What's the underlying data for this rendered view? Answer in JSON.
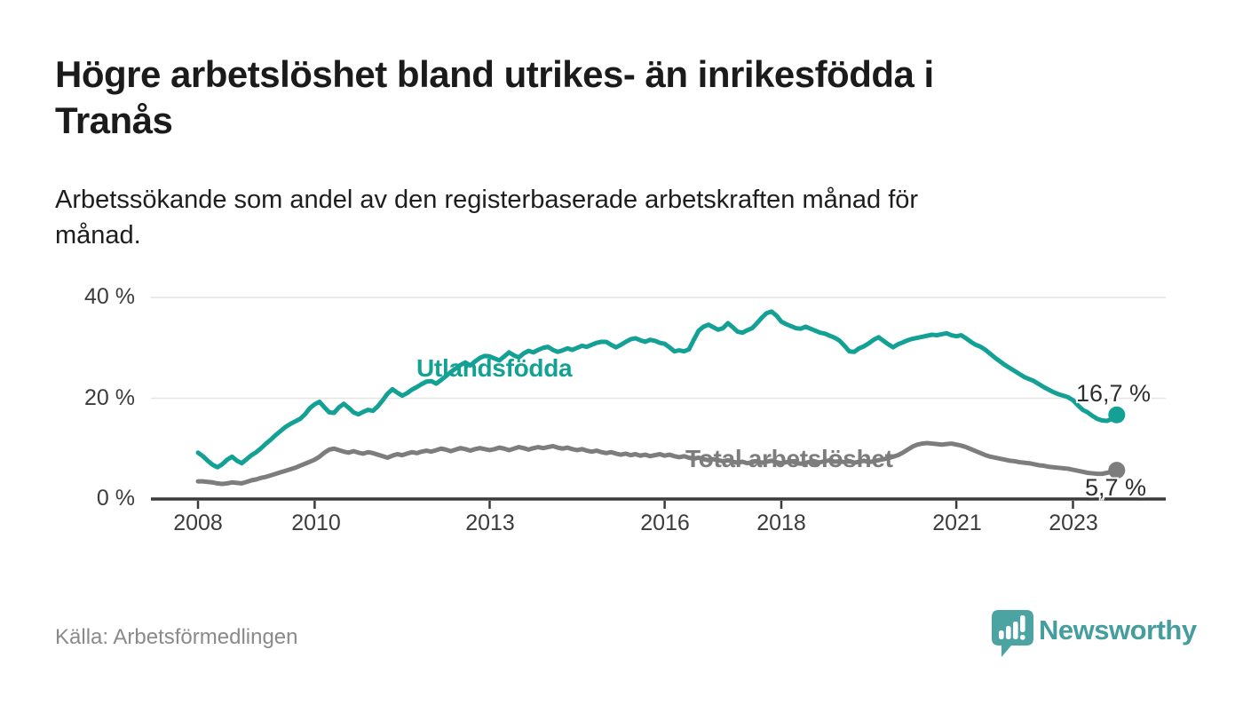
{
  "header": {
    "title": "Högre arbetslöshet bland utrikes- än inrikesfödda i\nTranås",
    "subtitle": "Arbetssökande som andel av den registerbaserade arbetskraften månad för\nmånad."
  },
  "footer": {
    "source": "Källa: Arbetsförmedlingen",
    "brand": "Newsworthy",
    "logo_icon": "speech-bubble-bar-chart-exclamation"
  },
  "colors": {
    "series_foreign_born": "#14a195",
    "series_total": "#7d7d7d",
    "axis_line": "#3a3a3a",
    "gridline": "#e4e4e4",
    "axis_text": "#3c3c3c",
    "end_label_text": "#2e2e2e",
    "title_text": "#1b1b1b",
    "source_text": "#8a8a8a",
    "logo_teal": "#4ba3a2"
  },
  "chart_data": {
    "type": "line",
    "x_start_year": 2008,
    "points_per_year": 12,
    "x_end_approx": "2023-10",
    "xlim": [
      2007.2,
      2024.6
    ],
    "ylim": [
      0,
      44
    ],
    "grid": "horizontal",
    "legend": "inline-labels",
    "y_ticks": [
      {
        "value": 0,
        "label": "0 %"
      },
      {
        "value": 20,
        "label": "20 %"
      },
      {
        "value": 40,
        "label": "40 %"
      }
    ],
    "x_ticks": [
      {
        "year": 2008,
        "label": "2008"
      },
      {
        "year": 2010,
        "label": "2010"
      },
      {
        "year": 2013,
        "label": "2013"
      },
      {
        "year": 2016,
        "label": "2016"
      },
      {
        "year": 2018,
        "label": "2018"
      },
      {
        "year": 2021,
        "label": "2021"
      },
      {
        "year": 2023,
        "label": "2023"
      }
    ],
    "series": [
      {
        "name": "Utlandsfödda",
        "color": "#14a195",
        "end_label": "16,7 %",
        "end_value": 16.7,
        "values": [
          9.2,
          8.5,
          7.6,
          6.8,
          6.3,
          6.9,
          7.8,
          8.4,
          7.6,
          7.1,
          7.9,
          8.7,
          9.3,
          10.1,
          11.0,
          11.8,
          12.7,
          13.5,
          14.3,
          14.9,
          15.4,
          15.9,
          16.8,
          18.0,
          18.8,
          19.3,
          18.2,
          17.2,
          17.1,
          18.2,
          18.9,
          18.1,
          17.2,
          16.8,
          17.3,
          17.7,
          17.5,
          18.4,
          19.6,
          20.9,
          21.8,
          21.1,
          20.5,
          21.0,
          21.7,
          22.2,
          22.8,
          23.3,
          23.4,
          22.9,
          23.6,
          24.4,
          25.2,
          25.9,
          26.6,
          27.1,
          26.5,
          27.3,
          28.0,
          28.4,
          28.3,
          27.9,
          27.5,
          28.3,
          29.1,
          28.5,
          28.1,
          28.9,
          29.4,
          29.1,
          29.6,
          30.0,
          30.2,
          29.6,
          29.2,
          29.5,
          29.9,
          29.6,
          30.0,
          30.4,
          30.2,
          30.6,
          31.0,
          31.2,
          31.2,
          30.6,
          30.1,
          30.6,
          31.2,
          31.7,
          31.9,
          31.5,
          31.2,
          31.6,
          31.4,
          31.0,
          30.8,
          30.1,
          29.3,
          29.5,
          29.3,
          29.7,
          31.6,
          33.4,
          34.2,
          34.6,
          34.1,
          33.6,
          33.9,
          34.9,
          34.1,
          33.2,
          33.0,
          33.5,
          33.9,
          34.9,
          36.0,
          36.9,
          37.2,
          36.4,
          35.2,
          34.7,
          34.3,
          33.9,
          33.8,
          34.2,
          33.8,
          33.4,
          33.0,
          32.8,
          32.4,
          32.0,
          31.4,
          30.4,
          29.3,
          29.2,
          29.9,
          30.3,
          30.9,
          31.6,
          32.1,
          31.4,
          30.7,
          30.1,
          30.7,
          31.1,
          31.5,
          31.8,
          32.0,
          32.2,
          32.4,
          32.6,
          32.5,
          32.7,
          32.9,
          32.5,
          32.3,
          32.5,
          31.9,
          31.2,
          30.6,
          30.2,
          29.6,
          28.8,
          28.0,
          27.3,
          26.6,
          26.0,
          25.4,
          24.8,
          24.2,
          23.8,
          23.4,
          22.8,
          22.2,
          21.7,
          21.2,
          20.8,
          20.5,
          20.2,
          19.6,
          18.6,
          17.7,
          17.2,
          16.5,
          15.9,
          15.6,
          15.5,
          15.9,
          16.7
        ]
      },
      {
        "name": "Total arbetslöshet",
        "color": "#7d7d7d",
        "end_label": "5,7 %",
        "end_value": 5.7,
        "values": [
          3.5,
          3.5,
          3.4,
          3.3,
          3.1,
          3.0,
          3.1,
          3.3,
          3.2,
          3.1,
          3.4,
          3.7,
          3.9,
          4.2,
          4.4,
          4.7,
          5.0,
          5.3,
          5.6,
          5.9,
          6.2,
          6.6,
          7.0,
          7.4,
          7.8,
          8.4,
          9.2,
          9.8,
          10.0,
          9.7,
          9.4,
          9.2,
          9.5,
          9.2,
          9.0,
          9.3,
          9.1,
          8.8,
          8.5,
          8.2,
          8.6,
          8.9,
          8.7,
          9.0,
          9.3,
          9.1,
          9.4,
          9.6,
          9.4,
          9.7,
          10.0,
          9.8,
          9.5,
          9.8,
          10.1,
          9.9,
          9.6,
          9.9,
          10.1,
          9.9,
          9.7,
          9.9,
          10.2,
          10.0,
          9.7,
          10.0,
          10.3,
          10.1,
          9.8,
          10.1,
          10.3,
          10.1,
          10.3,
          10.5,
          10.2,
          10.0,
          10.2,
          9.9,
          9.7,
          9.9,
          9.6,
          9.4,
          9.6,
          9.3,
          9.1,
          9.3,
          9.0,
          8.8,
          9.0,
          8.7,
          8.9,
          8.6,
          8.8,
          8.5,
          8.7,
          8.9,
          8.6,
          8.8,
          8.5,
          8.3,
          8.5,
          8.2,
          8.0,
          8.2,
          7.9,
          7.7,
          7.9,
          7.7,
          7.5,
          7.7,
          7.4,
          7.2,
          7.4,
          7.1,
          7.3,
          7.5,
          7.2,
          7.4,
          7.6,
          7.3,
          7.1,
          7.3,
          7.5,
          7.2,
          7.0,
          7.2,
          7.4,
          7.1,
          7.3,
          7.5,
          7.7,
          7.4,
          7.5,
          7.3,
          7.5,
          7.2,
          7.4,
          7.6,
          7.3,
          7.5,
          7.7,
          7.9,
          8.1,
          8.4,
          8.7,
          9.2,
          9.8,
          10.4,
          10.8,
          11.0,
          11.1,
          11.0,
          10.9,
          10.8,
          10.9,
          11.0,
          10.8,
          10.6,
          10.3,
          9.9,
          9.5,
          9.1,
          8.7,
          8.4,
          8.2,
          8.0,
          7.8,
          7.6,
          7.5,
          7.3,
          7.2,
          7.1,
          6.9,
          6.7,
          6.6,
          6.4,
          6.3,
          6.2,
          6.1,
          6.0,
          5.8,
          5.6,
          5.4,
          5.2,
          5.1,
          5.0,
          5.0,
          5.2,
          5.4,
          5.7
        ]
      }
    ]
  }
}
